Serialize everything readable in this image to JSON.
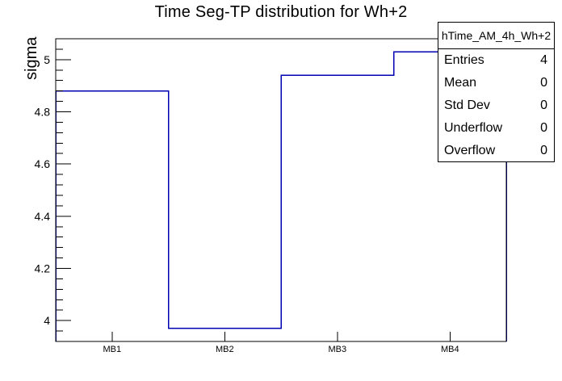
{
  "chart_data": {
    "type": "bar",
    "style": "step-outline-histogram",
    "title": "Time Seg-TP distribution for Wh+2",
    "categories": [
      "MB1",
      "MB2",
      "MB3",
      "MB4"
    ],
    "values": [
      4.88,
      3.97,
      4.94,
      5.03
    ],
    "xlabel": "",
    "ylabel": "sigma",
    "ylim": [
      3.92,
      5.08
    ],
    "y_major_ticks": [
      4,
      4.2,
      4.4,
      4.6,
      4.8,
      5
    ],
    "y_tick_labels": [
      "4",
      "4.2",
      "4.4",
      "4.6",
      "4.8",
      "5"
    ],
    "y_minor_tick_step": 0.04,
    "grid": false,
    "legend_position": "none",
    "line_color": "#0000b3",
    "frame_color": "#000000",
    "background_color": "#ffffff"
  },
  "stats_box": {
    "header": "hTime_AM_4h_Wh+2",
    "rows": [
      {
        "label": "Entries",
        "value": "4"
      },
      {
        "label": "Mean",
        "value": "0"
      },
      {
        "label": "Std Dev",
        "value": "0"
      },
      {
        "label": "Underflow",
        "value": "0"
      },
      {
        "label": "Overflow",
        "value": "0"
      }
    ]
  }
}
